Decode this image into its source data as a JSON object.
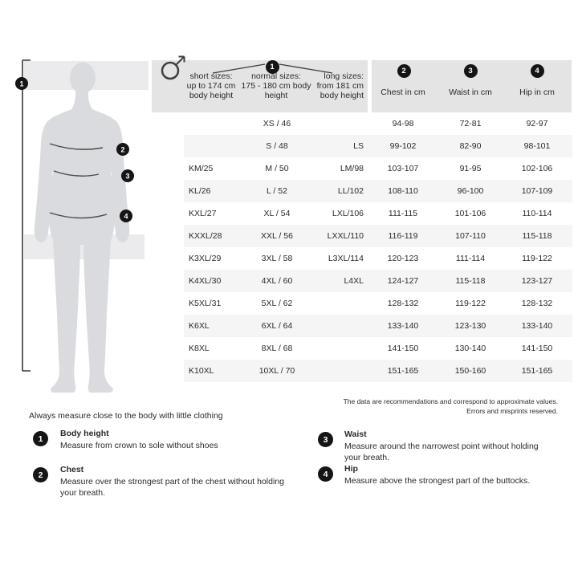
{
  "figure": {
    "icon": "male-symbol",
    "badge_labels": [
      "1",
      "2",
      "3",
      "4"
    ]
  },
  "table": {
    "header": {
      "body_height_badge": "1",
      "col_short": [
        "short sizes:",
        "up to 174 cm",
        "body height"
      ],
      "col_normal": [
        "normal sizes:",
        "175 - 180 cm body",
        "height"
      ],
      "col_long": [
        "long sizes:",
        "from 181 cm",
        "body height"
      ],
      "col_chest": {
        "badge": "2",
        "label": "Chest in cm"
      },
      "col_waist": {
        "badge": "3",
        "label": "Waist in cm"
      },
      "col_hip": {
        "badge": "4",
        "label": "Hip in cm"
      }
    },
    "rows": [
      [
        "",
        "XS / 46",
        "",
        "94-98",
        "72-81",
        "92-97"
      ],
      [
        "",
        "S / 48",
        "LS",
        "99-102",
        "82-90",
        "98-101"
      ],
      [
        "KM/25",
        "M / 50",
        "LM/98",
        "103-107",
        "91-95",
        "102-106"
      ],
      [
        "KL/26",
        "L / 52",
        "LL/102",
        "108-110",
        "96-100",
        "107-109"
      ],
      [
        "KXL/27",
        "XL / 54",
        "LXL/106",
        "111-115",
        "101-106",
        "110-114"
      ],
      [
        "KXXL/28",
        "XXL / 56",
        "LXXL/110",
        "116-119",
        "107-110",
        "115-118"
      ],
      [
        "K3XL/29",
        "3XL / 58",
        "L3XL/114",
        "120-123",
        "111-114",
        "119-122"
      ],
      [
        "K4XL/30",
        "4XL / 60",
        "L4XL",
        "124-127",
        "115-118",
        "123-127"
      ],
      [
        "K5XL/31",
        "5XL / 62",
        "",
        "128-132",
        "119-122",
        "128-132"
      ],
      [
        "K6XL",
        "6XL / 64",
        "",
        "133-140",
        "123-130",
        "133-140"
      ],
      [
        "K8XL",
        "8XL / 68",
        "",
        "141-150",
        "130-140",
        "141-150"
      ],
      [
        "K10XL",
        "10XL / 70",
        "",
        "151-165",
        "150-160",
        "151-165"
      ]
    ]
  },
  "disclaimer": {
    "line1": "The data are recommendations and correspond to approximate values.",
    "line2": "Errors and misprints reserved."
  },
  "legend": {
    "intro": "Always measure close to the body with little clothing",
    "items": [
      {
        "num": "1",
        "title": "Body height",
        "desc": "Measure from crown to sole without shoes"
      },
      {
        "num": "2",
        "title": "Chest",
        "desc": "Measure over the strongest part of the chest without holding your breath."
      },
      {
        "num": "3",
        "title": "Waist",
        "desc": "Measure around the narrowest point without holding your breath."
      },
      {
        "num": "4",
        "title": "Hip",
        "desc": "Measure above the strongest part of the buttocks."
      }
    ]
  },
  "colors": {
    "header_band": "#e4e4e4",
    "row_stripe": "#f5f5f6",
    "silhouette": "#d9dbde",
    "background_band": "#ebebed",
    "badge": "#151515",
    "text": "#2a2a2a"
  }
}
